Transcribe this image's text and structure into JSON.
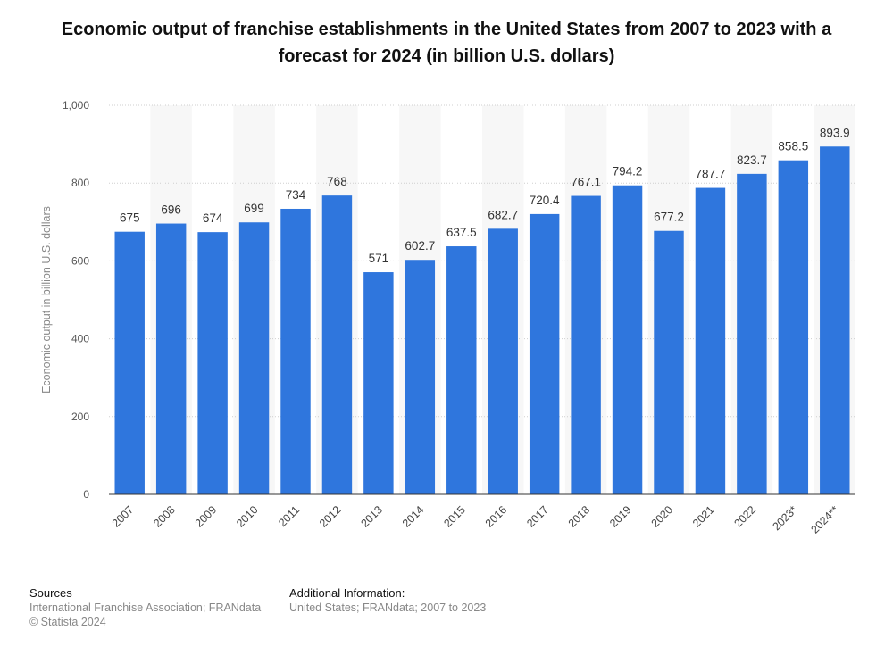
{
  "title": "Economic output of franchise establishments in the United States from 2007 to 2023 with a forecast for 2024 (in billion U.S. dollars)",
  "footer": {
    "sources_heading": "Sources",
    "sources_text": "International Franchise Association; FRANdata",
    "copyright": "© Statista 2024",
    "additional_heading": "Additional Information:",
    "additional_text": "United States; FRANdata; 2007 to 2023"
  },
  "colors": {
    "bar": "#2f76dd",
    "band": "#f7f7f7",
    "grid": "#cfcfcf"
  },
  "chart_data": {
    "type": "bar",
    "categories": [
      "2007",
      "2008",
      "2009",
      "2010",
      "2011",
      "2012",
      "2013",
      "2014",
      "2015",
      "2016",
      "2017",
      "2018",
      "2019",
      "2020",
      "2021",
      "2022",
      "2023*",
      "2024**"
    ],
    "values": [
      675,
      696,
      674,
      699,
      734,
      768,
      571,
      602.7,
      637.5,
      682.7,
      720.4,
      767.1,
      794.2,
      677.2,
      787.7,
      823.7,
      858.5,
      893.9
    ],
    "value_labels": [
      "675",
      "696",
      "674",
      "699",
      "734",
      "768",
      "571",
      "602.7",
      "637.5",
      "682.7",
      "720.4",
      "767.1",
      "794.2",
      "677.2",
      "787.7",
      "823.7",
      "858.5",
      "893.9"
    ],
    "ylabel": "Economic output in billion U.S. dollars",
    "xlabel": "",
    "ylim": [
      0,
      1000
    ],
    "yticks": [
      0,
      200,
      400,
      600,
      800,
      1000
    ],
    "ytick_labels": [
      "0",
      "200",
      "400",
      "600",
      "800",
      "1,000"
    ],
    "grid": true,
    "legend": "none"
  }
}
